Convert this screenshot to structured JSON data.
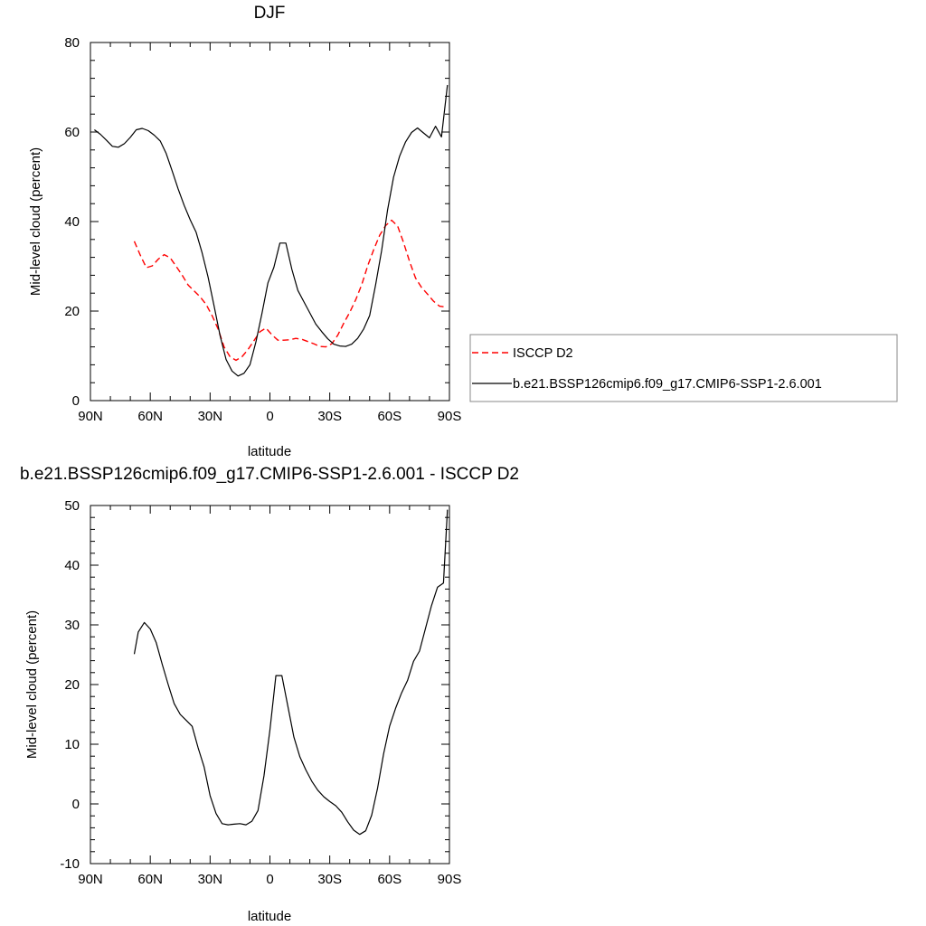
{
  "chart_data": [
    {
      "type": "line",
      "title": "DJF",
      "xlabel": "latitude",
      "ylabel": "Mid-level cloud (percent)",
      "ylim": [
        0,
        80
      ],
      "yticks": [
        0,
        20,
        40,
        60,
        80
      ],
      "xlim": [
        90,
        -90
      ],
      "xticks": [
        90,
        60,
        30,
        0,
        -30,
        -60,
        -90
      ],
      "xtick_labels": [
        "90N",
        "60N",
        "30N",
        "0",
        "30S",
        "60S",
        "90S"
      ],
      "grid": false,
      "legend_placement": "right",
      "series": [
        {
          "name": "ISCCP D2",
          "color": "#ff0000",
          "dash": "dashed",
          "x": [
            68,
            65,
            62,
            59,
            56,
            53,
            50,
            47,
            44,
            41,
            38,
            35,
            32,
            29,
            26,
            23,
            20,
            17,
            14,
            11,
            8,
            5,
            2,
            -1,
            -4,
            -7,
            -10,
            -13,
            -16,
            -19,
            -22,
            -25,
            -28,
            -31,
            -34,
            -37,
            -40,
            -43,
            -46,
            -49,
            -52,
            -55,
            -58,
            -61,
            -64,
            -67,
            -70,
            -73,
            -76,
            -79,
            -82,
            -85,
            -88
          ],
          "y": [
            35.6,
            32.5,
            29.7,
            30.1,
            31.6,
            32.6,
            31.9,
            30.0,
            28.0,
            25.8,
            24.5,
            23.2,
            21.5,
            19.0,
            16.0,
            12.0,
            9.8,
            9.0,
            9.8,
            11.4,
            13.4,
            15.4,
            16.2,
            14.7,
            13.5,
            13.5,
            13.6,
            13.9,
            13.7,
            13.2,
            12.7,
            12.1,
            12.0,
            12.7,
            14.6,
            17.3,
            19.7,
            22.5,
            25.9,
            30.1,
            33.7,
            36.9,
            39.1,
            40.3,
            39.0,
            35.3,
            31.1,
            27.4,
            25.3,
            23.8,
            22.2,
            21.1,
            20.9
          ]
        },
        {
          "name": "b.e21.BSSP126cmip6.f09_g17.CMIP6-SSP1-2.6.001",
          "color": "#000000",
          "dash": "solid",
          "x": [
            88,
            85,
            82,
            79,
            76,
            73,
            70,
            67,
            64,
            61,
            58,
            55,
            52,
            49,
            46,
            43,
            40,
            37,
            34,
            31,
            28,
            25,
            22,
            19,
            16,
            13,
            10,
            7,
            4,
            1,
            -2,
            -5,
            -8,
            -11,
            -14,
            -17,
            -20,
            -23,
            -26,
            -29,
            -32,
            -35,
            -38,
            -41,
            -44,
            -47,
            -50,
            -53,
            -56,
            -59,
            -62,
            -65,
            -68,
            -71,
            -74,
            -77,
            -80,
            -83,
            -86,
            -89
          ],
          "y": [
            60.5,
            59.5,
            58.2,
            56.8,
            56.6,
            57.4,
            58.8,
            60.5,
            60.8,
            60.3,
            59.3,
            58.0,
            55.2,
            51.3,
            47.3,
            43.6,
            40.4,
            37.6,
            33.0,
            27.6,
            21.2,
            14.5,
            9.2,
            6.6,
            5.5,
            6.1,
            8.0,
            13.2,
            19.5,
            26.3,
            29.8,
            35.2,
            35.2,
            29.3,
            24.6,
            22.1,
            19.6,
            17.1,
            15.4,
            13.8,
            12.6,
            12.2,
            12.1,
            12.6,
            13.9,
            16.0,
            19.0,
            25.9,
            33.5,
            42.6,
            49.9,
            54.6,
            57.8,
            59.9,
            60.9,
            59.8,
            58.7,
            61.3,
            58.9,
            70.5
          ]
        }
      ]
    },
    {
      "type": "line",
      "title": "b.e21.BSSP126cmip6.f09_g17.CMIP6-SSP1-2.6.001 - ISCCP D2",
      "xlabel": "latitude",
      "ylabel": "Mid-level cloud (percent)",
      "ylim": [
        -10,
        50
      ],
      "yticks": [
        -10,
        0,
        10,
        20,
        30,
        40,
        50
      ],
      "xlim": [
        90,
        -90
      ],
      "xticks": [
        90,
        60,
        30,
        0,
        -30,
        -60,
        -90
      ],
      "xtick_labels": [
        "90N",
        "60N",
        "30N",
        "0",
        "30S",
        "60S",
        "90S"
      ],
      "grid": false,
      "series": [
        {
          "color": "#000000",
          "dash": "solid",
          "x": [
            68,
            66,
            63,
            60,
            57,
            54,
            51,
            48,
            45,
            42,
            39,
            36,
            33,
            30,
            27,
            24,
            21,
            18,
            15,
            12,
            9,
            6,
            3,
            0,
            -3,
            -6,
            -9,
            -12,
            -15,
            -18,
            -21,
            -24,
            -27,
            -30,
            -33,
            -36,
            -39,
            -42,
            -45,
            -48,
            -51,
            -54,
            -57,
            -60,
            -63,
            -66,
            -69,
            -72,
            -75,
            -78,
            -81,
            -84,
            -87,
            -89
          ],
          "y": [
            25.1,
            28.8,
            30.4,
            29.3,
            27.0,
            23.4,
            20.0,
            16.8,
            15.0,
            14.0,
            13.0,
            9.4,
            6.2,
            1.4,
            -1.6,
            -3.3,
            -3.5,
            -3.4,
            -3.3,
            -3.5,
            -2.9,
            -1.1,
            4.7,
            12.4,
            21.5,
            21.5,
            16.3,
            11.2,
            7.9,
            5.7,
            3.8,
            2.3,
            1.2,
            0.4,
            -0.3,
            -1.4,
            -3.0,
            -4.4,
            -5.1,
            -4.5,
            -1.9,
            2.7,
            8.4,
            13.0,
            16.0,
            18.6,
            20.7,
            23.9,
            25.6,
            29.4,
            33.2,
            36.3,
            37.0,
            49.3
          ]
        }
      ]
    }
  ]
}
